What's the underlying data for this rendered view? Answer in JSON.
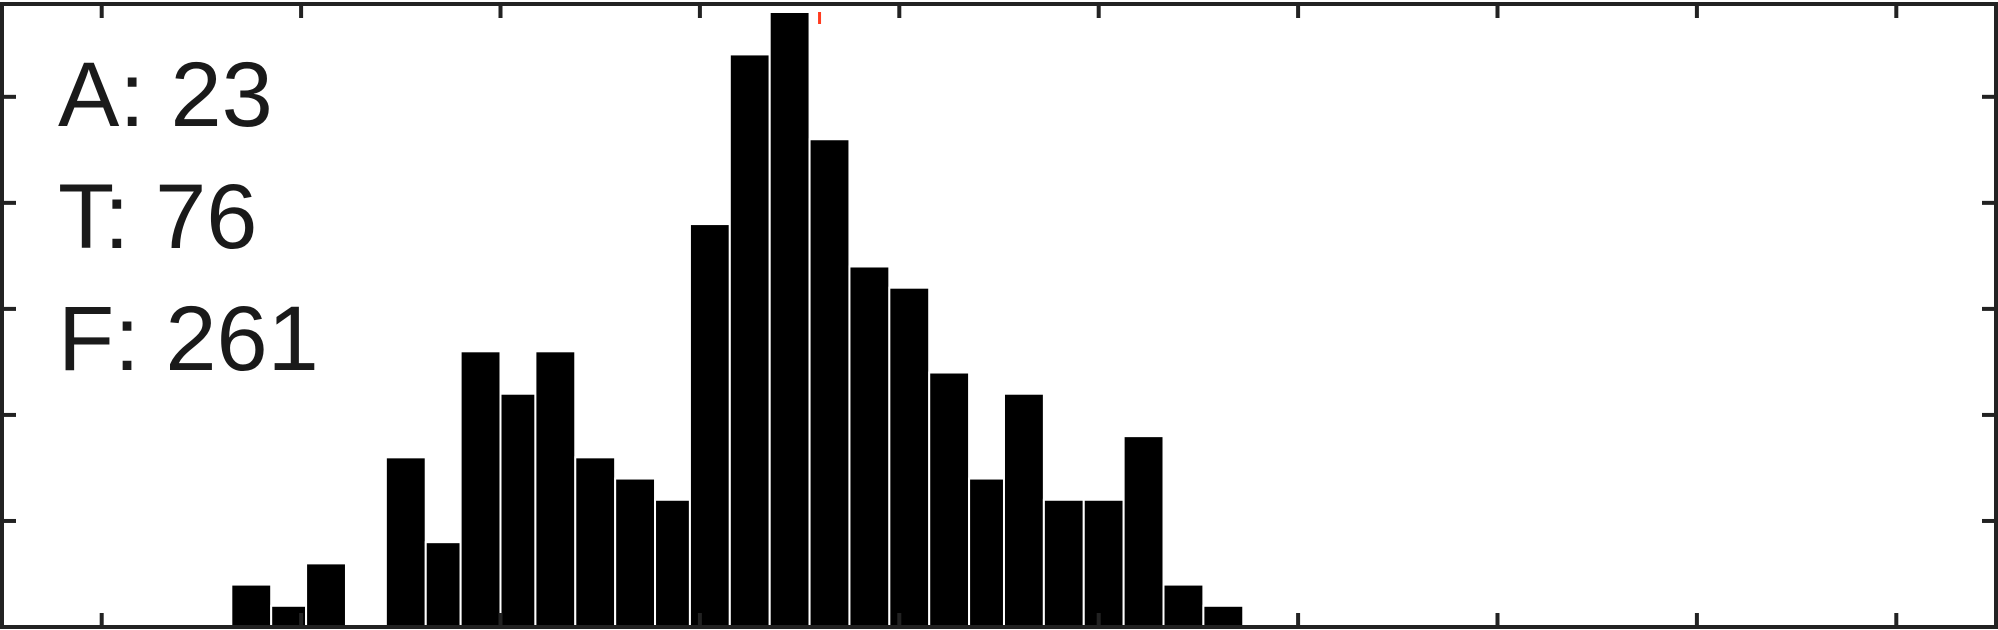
{
  "stats": {
    "a_label": "A: 23",
    "t_label": "T: 76",
    "f_label": "F: 261"
  },
  "chart_data": {
    "type": "bar",
    "ylim": [
      0,
      29
    ],
    "grid": false,
    "legend": "none",
    "bar_color": "#000000",
    "marker_color": "#ff3b1f",
    "bins": [
      {
        "x0": 2.3,
        "x1": 2.7,
        "y": 2
      },
      {
        "x0": 2.7,
        "x1": 3.05,
        "y": 1
      },
      {
        "x0": 3.05,
        "y": 3,
        "x1": 3.45
      },
      {
        "x0": 3.85,
        "x1": 4.25,
        "y": 8
      },
      {
        "x0": 4.25,
        "x1": 4.6,
        "y": 4
      },
      {
        "x0": 4.6,
        "x1": 5.0,
        "y": 13
      },
      {
        "x0": 5.0,
        "x1": 5.35,
        "y": 11
      },
      {
        "x0": 5.35,
        "x1": 5.75,
        "y": 13
      },
      {
        "x0": 5.75,
        "x1": 6.15,
        "y": 8
      },
      {
        "x0": 6.15,
        "x1": 6.55,
        "y": 7
      },
      {
        "x0": 6.55,
        "x1": 6.9,
        "y": 6
      },
      {
        "x0": 6.9,
        "x1": 7.3,
        "y": 19
      },
      {
        "x0": 7.3,
        "x1": 7.7,
        "y": 27
      },
      {
        "x0": 7.7,
        "x1": 8.1,
        "y": 29
      },
      {
        "x0": 8.1,
        "x1": 8.5,
        "y": 23
      },
      {
        "x0": 8.5,
        "x1": 8.9,
        "y": 17
      },
      {
        "x0": 8.9,
        "x1": 9.3,
        "y": 16
      },
      {
        "x0": 9.3,
        "x1": 9.7,
        "y": 12
      },
      {
        "x0": 9.7,
        "x1": 10.05,
        "y": 7
      },
      {
        "x0": 10.05,
        "x1": 10.45,
        "y": 11
      },
      {
        "x0": 10.45,
        "x1": 10.85,
        "y": 6
      },
      {
        "x0": 10.85,
        "x1": 11.25,
        "y": 6
      },
      {
        "x0": 11.25,
        "x1": 11.65,
        "y": 9
      },
      {
        "x0": 11.65,
        "x1": 12.05,
        "y": 2
      },
      {
        "x0": 12.05,
        "x1": 12.45,
        "y": 1
      }
    ],
    "xlim": [
      0,
      20
    ],
    "x_ticks": [
      1,
      3,
      5,
      7,
      9,
      11,
      13,
      15,
      17,
      19
    ],
    "y_ticks": [
      5,
      10,
      15,
      20,
      25
    ],
    "marker_x": 8.2
  }
}
